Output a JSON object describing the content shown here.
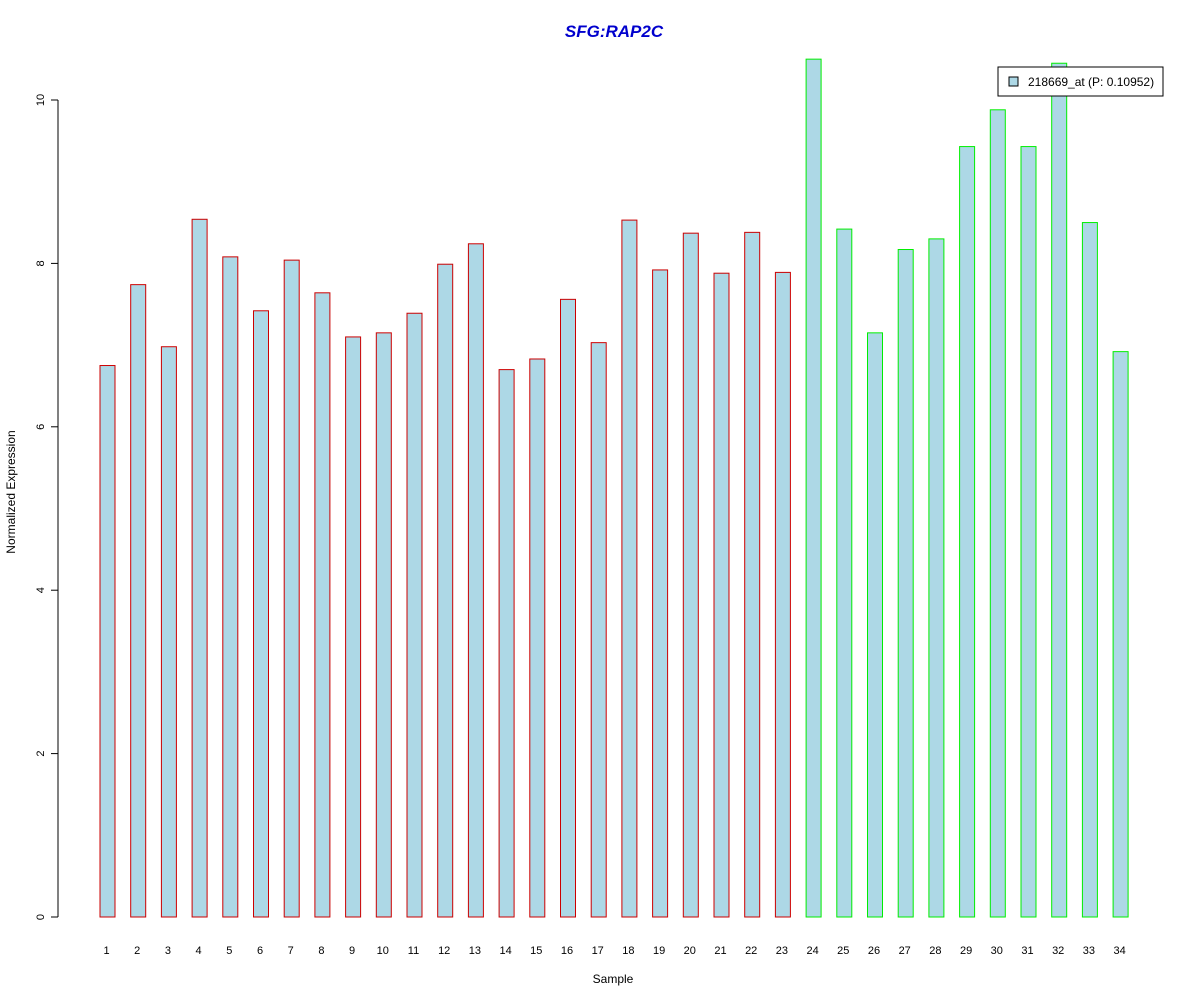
{
  "chart_data": {
    "type": "bar",
    "title": "SFG:RAP2C",
    "xlabel": "Sample",
    "ylabel": "Normalized Expression",
    "categories": [
      "1",
      "2",
      "3",
      "4",
      "5",
      "6",
      "7",
      "8",
      "9",
      "10",
      "11",
      "12",
      "13",
      "14",
      "15",
      "16",
      "17",
      "18",
      "19",
      "20",
      "21",
      "22",
      "23",
      "24",
      "25",
      "26",
      "27",
      "28",
      "29",
      "30",
      "31",
      "32",
      "33",
      "34"
    ],
    "values": [
      6.75,
      7.74,
      6.98,
      8.54,
      8.08,
      7.42,
      8.04,
      7.64,
      7.1,
      7.15,
      7.39,
      7.99,
      8.24,
      6.7,
      6.83,
      7.56,
      7.03,
      8.53,
      7.92,
      8.37,
      7.88,
      8.38,
      7.89,
      10.5,
      8.42,
      7.15,
      8.17,
      8.3,
      9.43,
      9.88,
      9.43,
      10.45,
      8.5,
      6.92
    ],
    "groups": [
      "g1",
      "g1",
      "g1",
      "g1",
      "g1",
      "g1",
      "g1",
      "g1",
      "g1",
      "g1",
      "g1",
      "g1",
      "g1",
      "g1",
      "g1",
      "g1",
      "g1",
      "g1",
      "g1",
      "g1",
      "g1",
      "g1",
      "g1",
      "g2",
      "g2",
      "g2",
      "g2",
      "g2",
      "g2",
      "g2",
      "g2",
      "g2",
      "g2",
      "g2"
    ],
    "group_border_colors": {
      "g1": "#cc0000",
      "g2": "#00ee00"
    },
    "bar_fill": "#add8e6",
    "y_ticks": [
      "0",
      "2",
      "4",
      "6",
      "8",
      "10"
    ],
    "ylim": [
      0,
      10.5
    ],
    "grid": false,
    "legend": {
      "placement": "top-right",
      "entries": [
        {
          "label": "218669_at (P: 0.10952)",
          "color": "#add8e6"
        }
      ]
    }
  }
}
